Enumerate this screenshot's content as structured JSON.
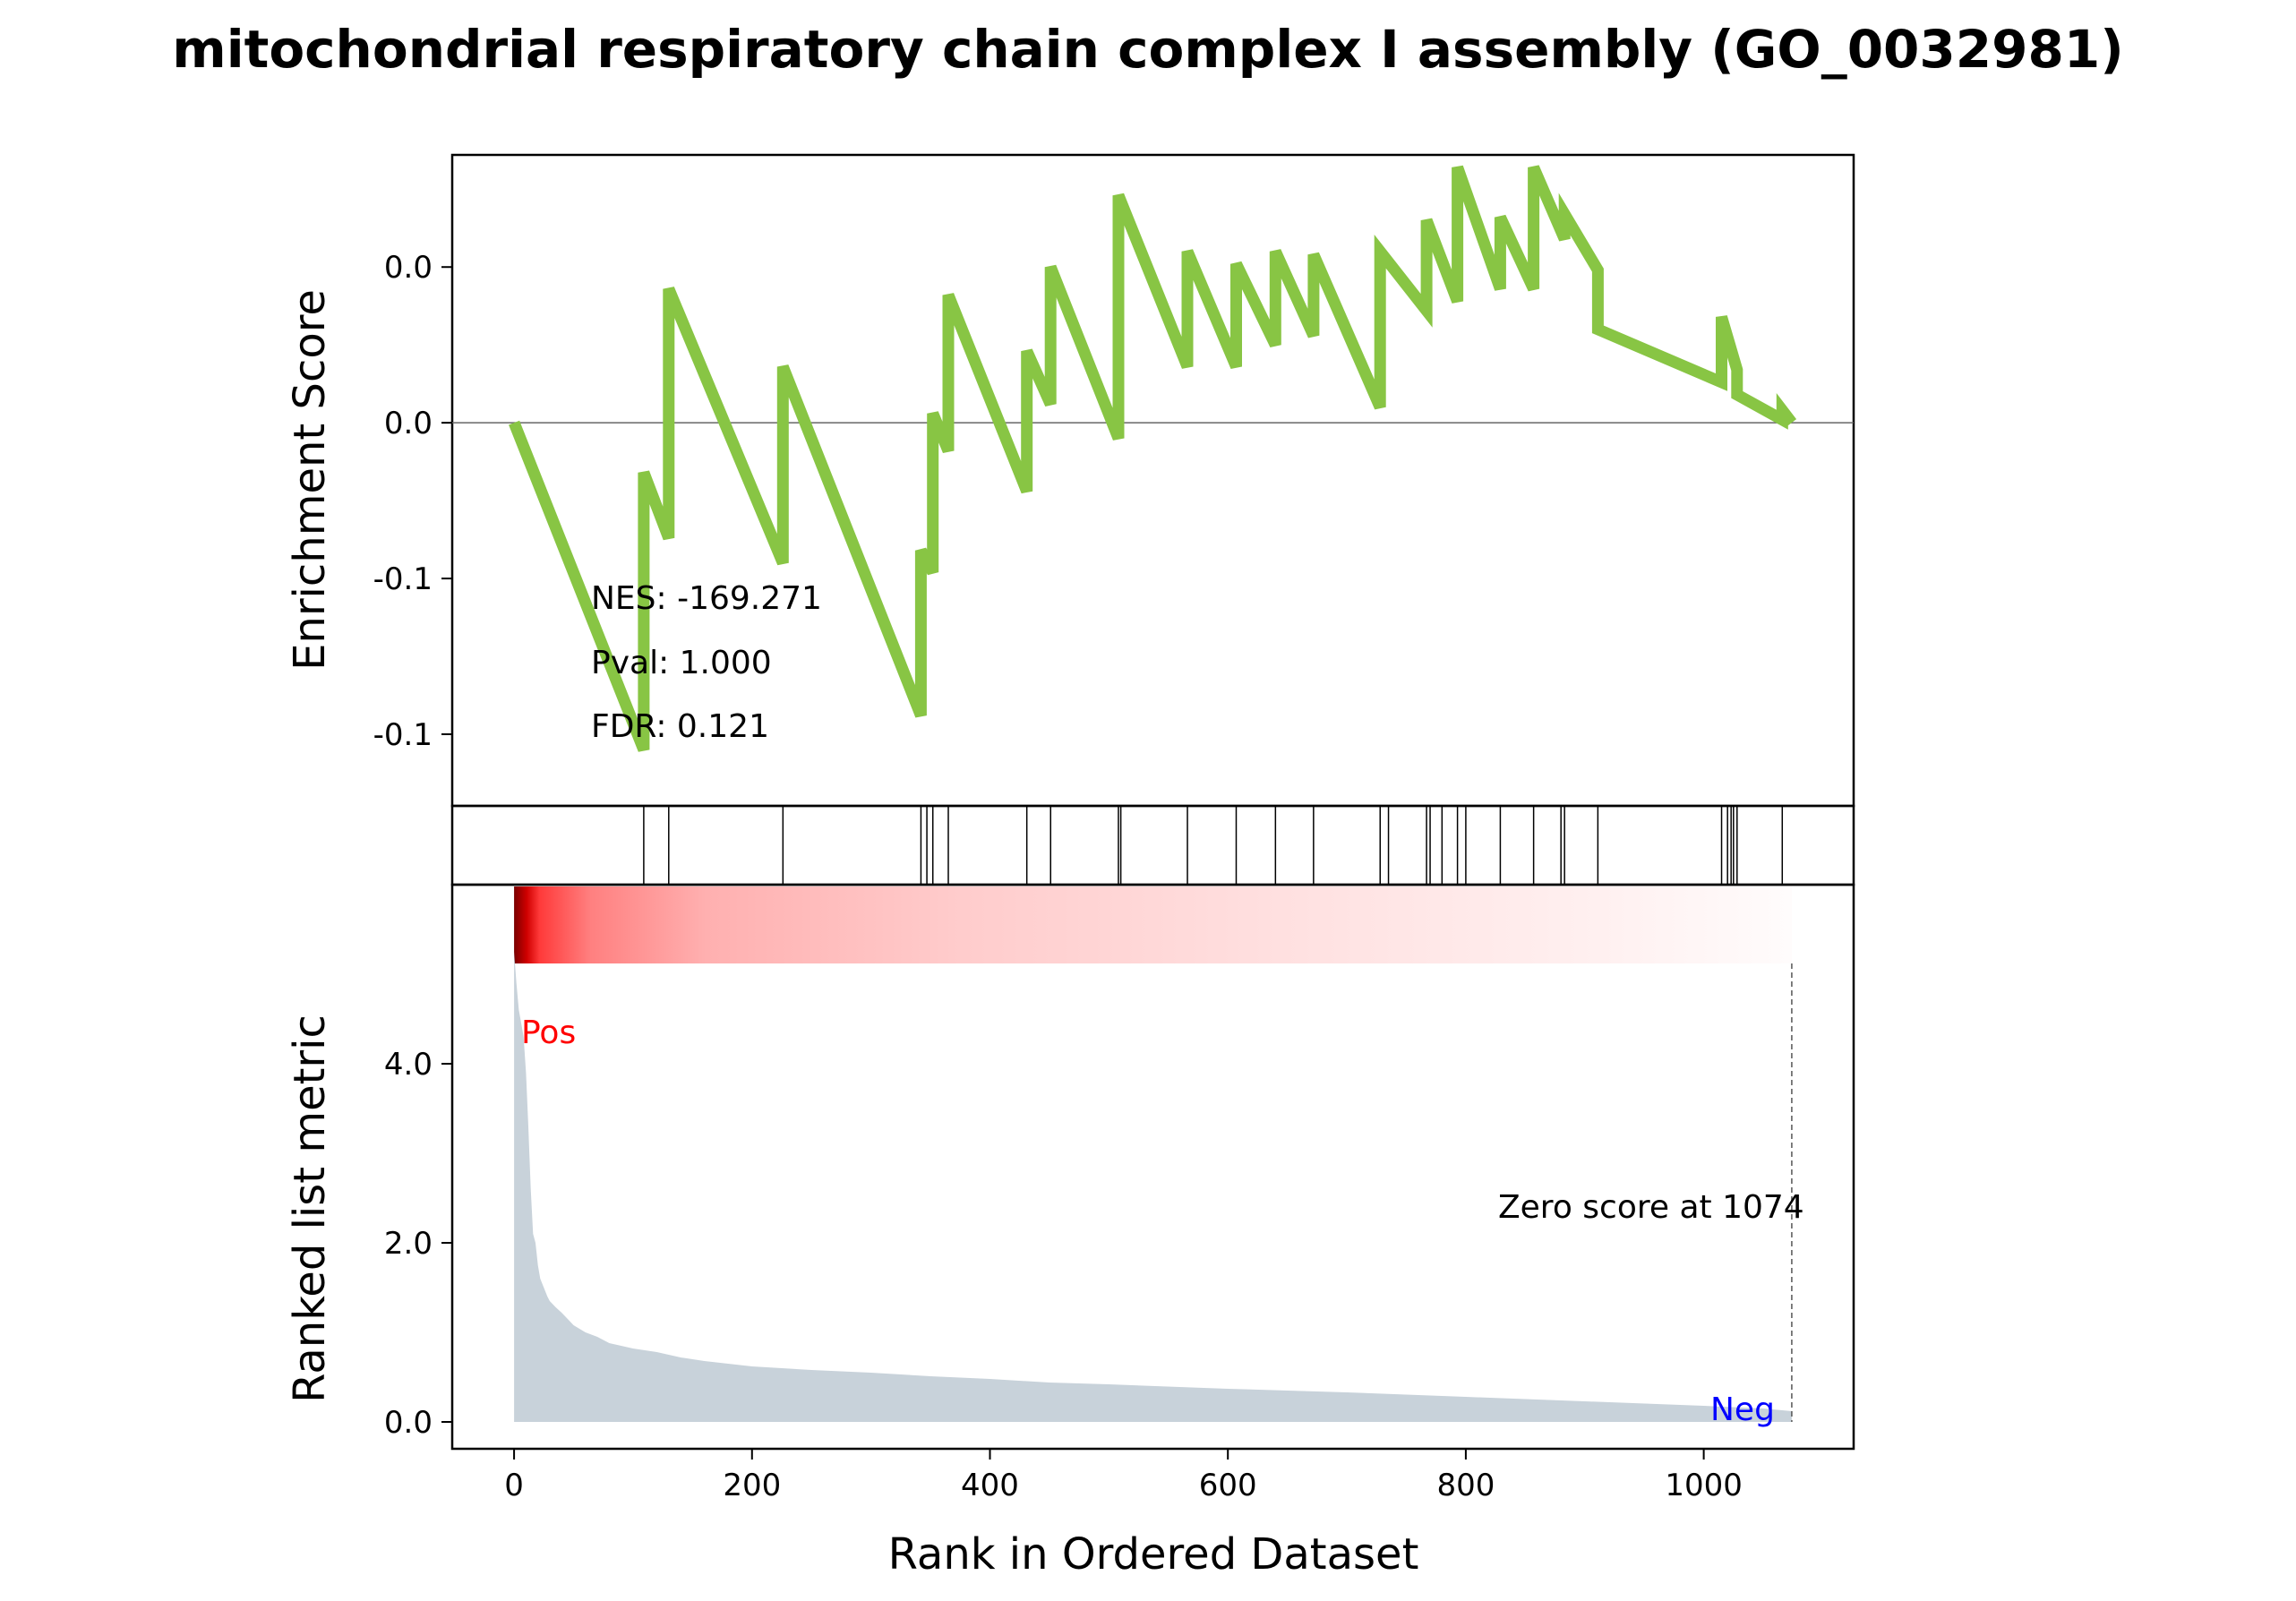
{
  "chart_data": {
    "type": "line",
    "title": "mitochondrial respiratory chain complex I assembly (GO_0032981)",
    "xlabel": "Rank in Ordered Dataset",
    "xlim": [
      -52,
      1126
    ],
    "x_ticks": [
      0,
      200,
      400,
      600,
      800,
      1000
    ],
    "x_tick_labels": [
      "0",
      "200",
      "400",
      "600",
      "800",
      "1000"
    ],
    "es_panel": {
      "ylabel": "Enrichment Score",
      "ylim": [
        -0.123,
        0.086
      ],
      "y_ticks": [
        -0.1,
        -0.05,
        0.0,
        0.05
      ],
      "y_tick_labels": [
        "-0.1",
        "-0.1",
        "0.0",
        "0.0"
      ],
      "line_color": "#88c544",
      "zero_line": true,
      "stats": {
        "nes": "NES: -169.271",
        "pval": "Pval: 1.000",
        "fdr": "FDR: 0.121"
      },
      "x": [
        0,
        109,
        109,
        130,
        130,
        226,
        226,
        342,
        342,
        352,
        352,
        365,
        365,
        431,
        431,
        451,
        451,
        508,
        508,
        566,
        566,
        607,
        607,
        640,
        640,
        672,
        672,
        728,
        728,
        767,
        767,
        793,
        793,
        829,
        829,
        857,
        857,
        883,
        883,
        911,
        911,
        1015,
        1015,
        1028,
        1028,
        1066,
        1066,
        1074
      ],
      "y": [
        0.0,
        -0.105,
        -0.016,
        -0.037,
        0.043,
        -0.045,
        0.018,
        -0.094,
        -0.041,
        -0.048,
        0.003,
        -0.009,
        0.041,
        -0.022,
        0.023,
        0.006,
        0.05,
        -0.005,
        0.073,
        0.018,
        0.055,
        0.018,
        0.051,
        0.025,
        0.055,
        0.028,
        0.054,
        0.005,
        0.055,
        0.036,
        0.065,
        0.039,
        0.082,
        0.043,
        0.066,
        0.043,
        0.082,
        0.059,
        0.067,
        0.049,
        0.03,
        0.013,
        0.034,
        0.017,
        0.009,
        0.001,
        0.004,
        0.0
      ]
    },
    "hits": [
      109,
      130,
      226,
      342,
      352,
      365,
      431,
      451,
      508,
      566,
      607,
      640,
      672,
      728,
      767,
      793,
      829,
      857,
      883,
      911,
      1015,
      1028,
      1066,
      347,
      510,
      735,
      770,
      780,
      800,
      880,
      1020,
      1023,
      1025
    ],
    "heatmap": {
      "colors_from": "#8b0000",
      "colors_to": "#ffffff",
      "range": [
        0,
        1074
      ]
    },
    "metric_panel": {
      "ylabel": "Ranked list metric",
      "ylim": [
        -0.3,
        6.0
      ],
      "y_ticks": [
        0.0,
        2.0,
        4.0
      ],
      "y_tick_labels": [
        "0.0",
        "2.0",
        "4.0"
      ],
      "fill_color": "#c8d2da",
      "x": [
        0,
        2,
        4,
        6,
        8,
        10,
        12,
        14,
        16,
        18,
        20,
        22,
        25,
        28,
        30,
        35,
        40,
        45,
        50,
        60,
        70,
        80,
        90,
        100,
        120,
        140,
        160,
        180,
        200,
        250,
        300,
        350,
        400,
        450,
        500,
        600,
        700,
        800,
        900,
        1000,
        1050,
        1074
      ],
      "y": [
        5.25,
        4.9,
        4.6,
        4.45,
        4.3,
        3.9,
        3.3,
        2.6,
        2.1,
        2.0,
        1.75,
        1.6,
        1.5,
        1.4,
        1.35,
        1.28,
        1.22,
        1.15,
        1.08,
        1.0,
        0.95,
        0.88,
        0.85,
        0.82,
        0.78,
        0.72,
        0.68,
        0.65,
        0.62,
        0.58,
        0.55,
        0.51,
        0.48,
        0.44,
        0.42,
        0.37,
        0.33,
        0.28,
        0.23,
        0.18,
        0.15,
        0.12
      ],
      "pos_label": "Pos",
      "neg_label": "Neg",
      "zero_score_text": "Zero score at 1074",
      "zero_score_x": 1074
    }
  }
}
